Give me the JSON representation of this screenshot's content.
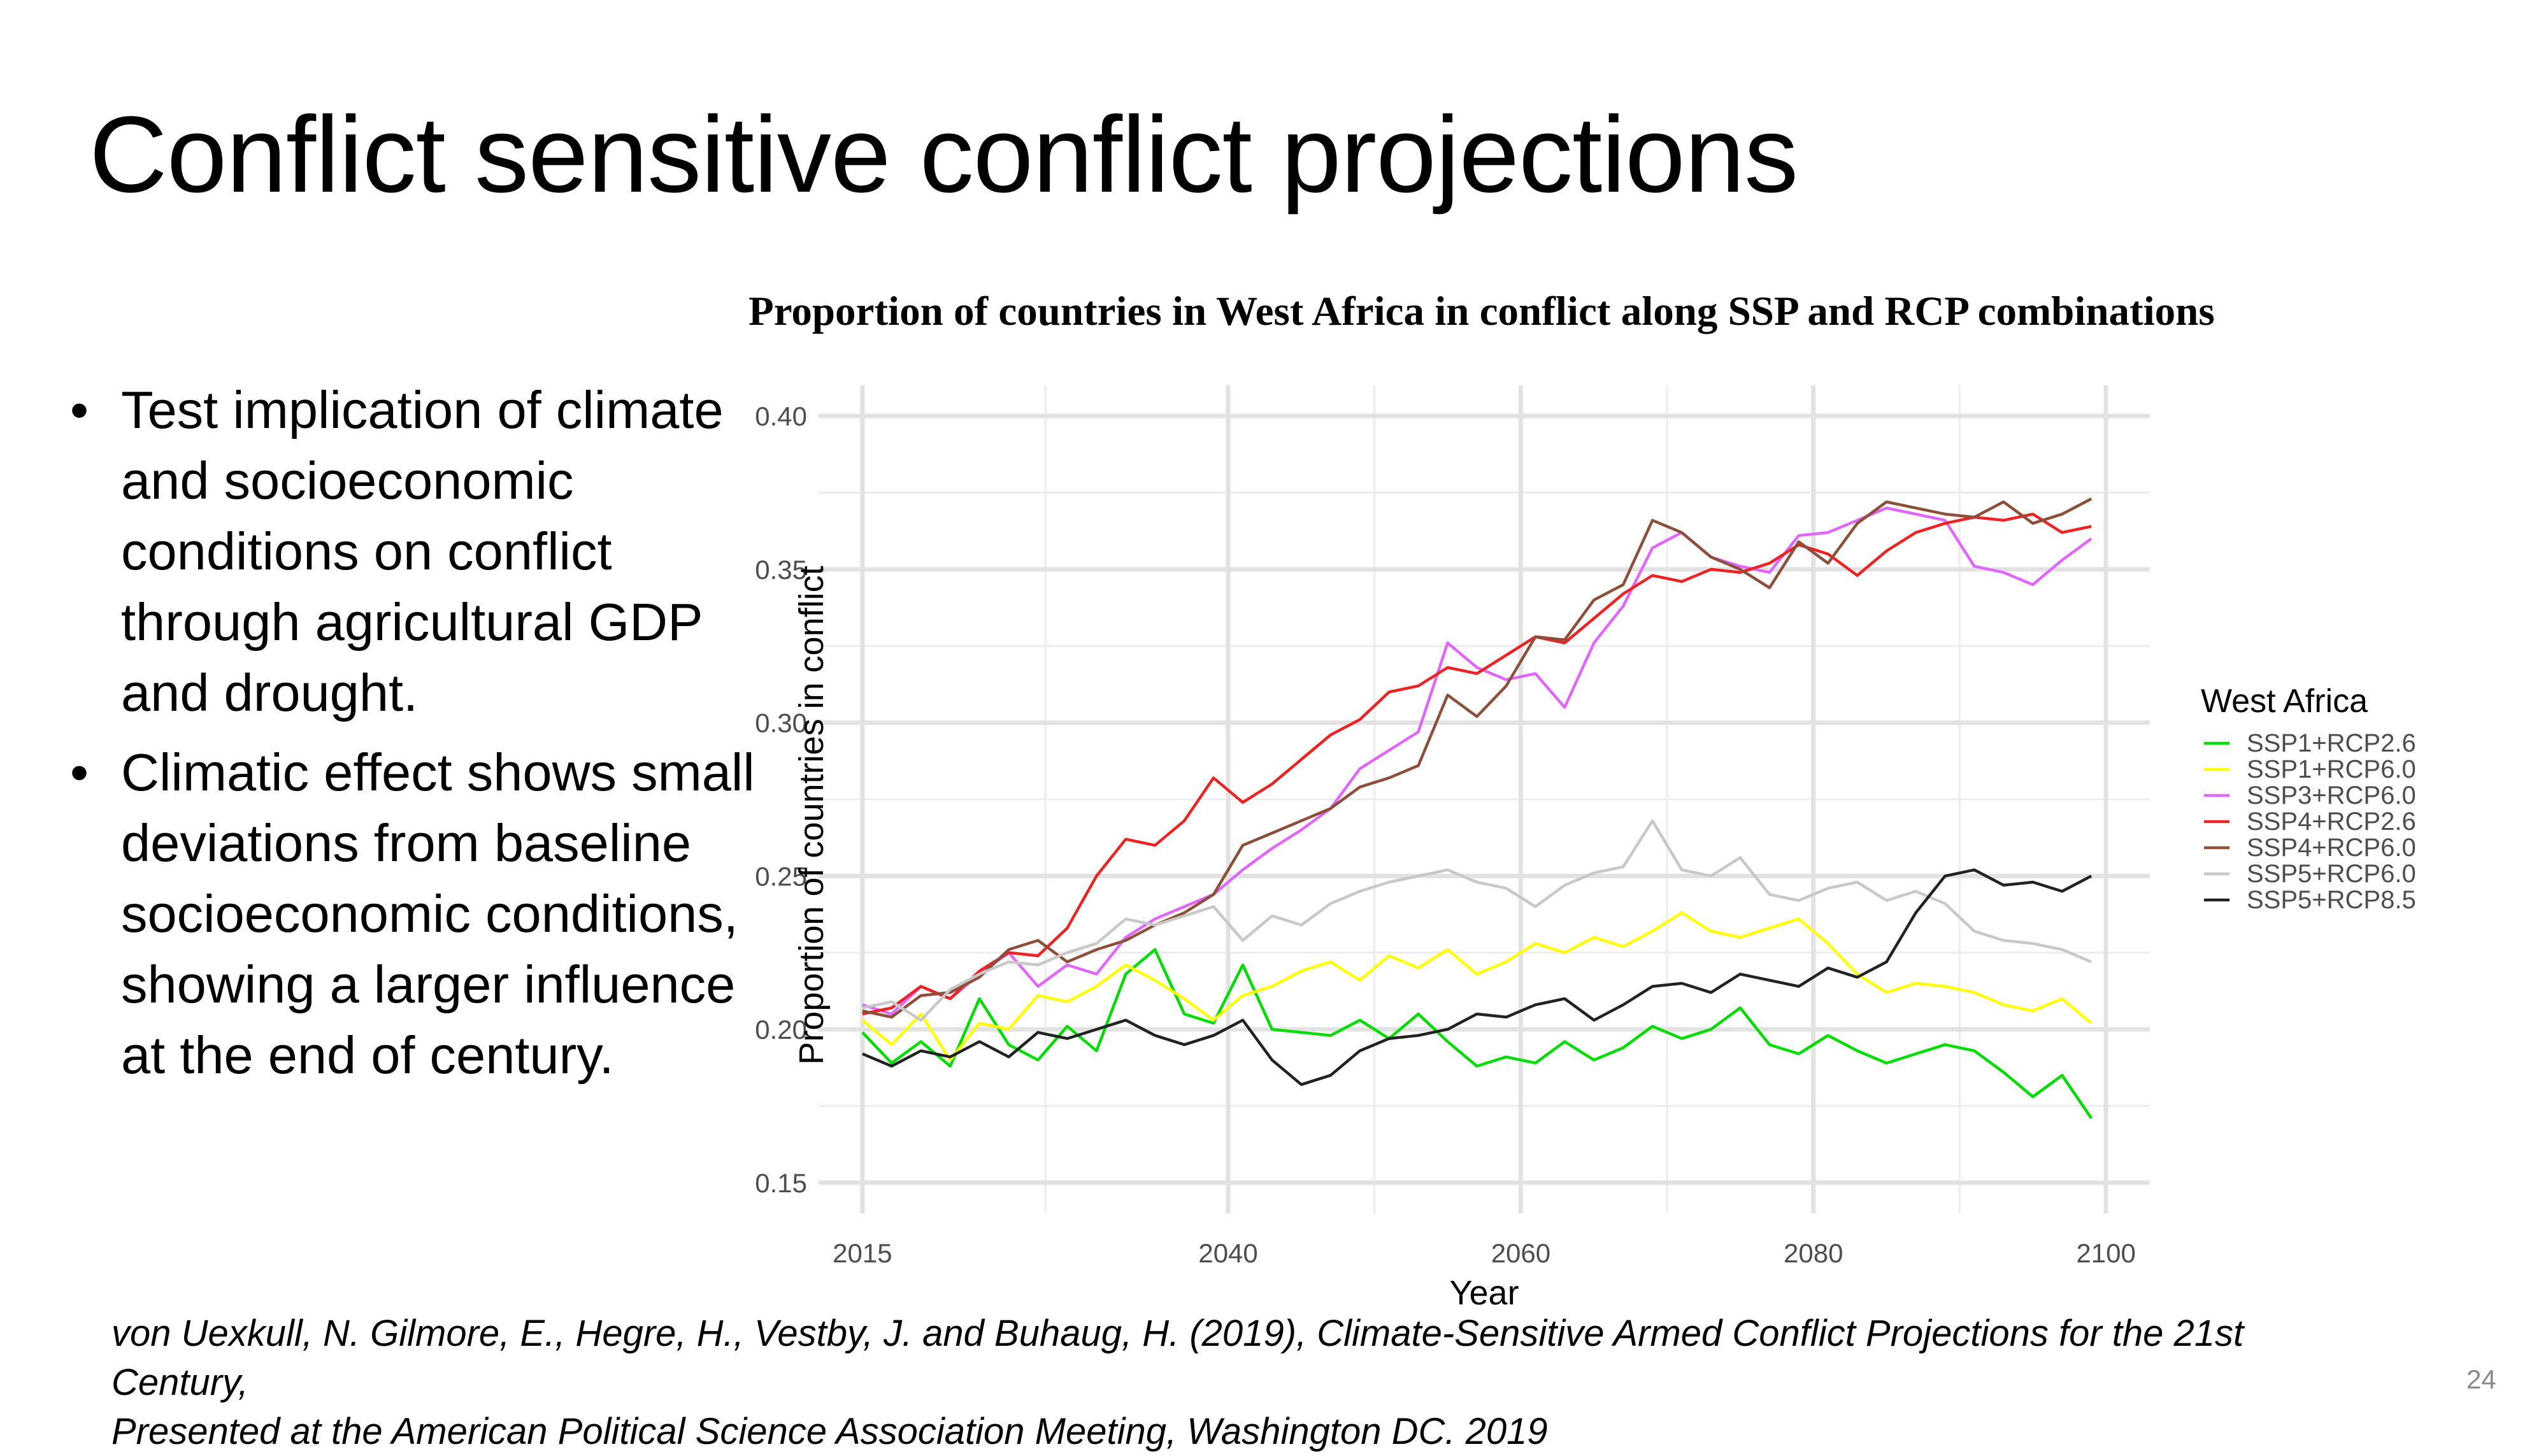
{
  "slide": {
    "title": "Conflict sensitive conflict projections",
    "bullets": [
      "Test implication of climate and socioeconomic conditions on conflict through agricultural GDP and drought.",
      "Climatic effect shows small deviations from baseline socioeconomic conditions, showing a larger influence at the end of century."
    ],
    "citation_line1": "von Uexkull, N. Gilmore, E., Hegre, H., Vestby, J. and Buhaug, H. (2019), Climate-Sensitive Armed Conflict Projections for the 21st Century,",
    "citation_line2": "Presented at the American Political Science Association Meeting, Washington DC. 2019",
    "page_number": "24"
  },
  "chart_data": {
    "type": "line",
    "title": "Proportion of countries in West Africa in conflict along SSP and RCP combinations",
    "xlabel": "Year",
    "ylabel": "Proportion of countries in conflict",
    "xlim": [
      2012,
      2103
    ],
    "ylim": [
      0.14,
      0.41
    ],
    "x_ticks": [
      2015,
      2040,
      2060,
      2080,
      2100
    ],
    "y_ticks": [
      0.15,
      0.2,
      0.25,
      0.3,
      0.35,
      0.4
    ],
    "grid": true,
    "legend_title": "West Africa",
    "legend_position": "right",
    "x": [
      2015,
      2017,
      2019,
      2021,
      2023,
      2025,
      2027,
      2029,
      2031,
      2033,
      2035,
      2037,
      2039,
      2041,
      2043,
      2045,
      2047,
      2049,
      2051,
      2053,
      2055,
      2057,
      2059,
      2061,
      2063,
      2065,
      2067,
      2069,
      2071,
      2073,
      2075,
      2077,
      2079,
      2081,
      2083,
      2085,
      2087,
      2089,
      2091,
      2093,
      2095,
      2097,
      2099
    ],
    "series": [
      {
        "name": "SSP1+RCP2.6",
        "color": "#00dd00",
        "values": [
          0.199,
          0.189,
          0.196,
          0.188,
          0.21,
          0.195,
          0.19,
          0.201,
          0.193,
          0.218,
          0.226,
          0.205,
          0.202,
          0.221,
          0.2,
          0.199,
          0.198,
          0.203,
          0.197,
          0.205,
          0.196,
          0.188,
          0.191,
          0.189,
          0.196,
          0.19,
          0.194,
          0.201,
          0.197,
          0.2,
          0.207,
          0.195,
          0.192,
          0.198,
          0.193,
          0.189,
          0.192,
          0.195,
          0.193,
          0.186,
          0.178,
          0.185,
          0.171
        ]
      },
      {
        "name": "SSP1+RCP6.0",
        "color": "#ffff00",
        "values": [
          0.203,
          0.195,
          0.205,
          0.19,
          0.202,
          0.2,
          0.211,
          0.209,
          0.214,
          0.221,
          0.216,
          0.21,
          0.203,
          0.211,
          0.214,
          0.219,
          0.222,
          0.216,
          0.224,
          0.22,
          0.226,
          0.218,
          0.222,
          0.228,
          0.225,
          0.23,
          0.227,
          0.232,
          0.238,
          0.232,
          0.23,
          0.233,
          0.236,
          0.228,
          0.218,
          0.212,
          0.215,
          0.214,
          0.212,
          0.208,
          0.206,
          0.21,
          0.202
        ]
      },
      {
        "name": "SSP3+RCP6.0",
        "color": "#e066ff",
        "values": [
          0.208,
          0.205,
          0.214,
          0.21,
          0.218,
          0.225,
          0.214,
          0.221,
          0.218,
          0.23,
          0.236,
          0.24,
          0.244,
          0.252,
          0.259,
          0.265,
          0.272,
          0.285,
          0.291,
          0.297,
          0.326,
          0.318,
          0.314,
          0.316,
          0.305,
          0.326,
          0.338,
          0.357,
          0.362,
          0.354,
          0.351,
          0.349,
          0.361,
          0.362,
          0.366,
          0.37,
          0.368,
          0.366,
          0.351,
          0.349,
          0.345,
          0.353,
          0.36
        ]
      },
      {
        "name": "SSP4+RCP2.6",
        "color": "#ee2222",
        "values": [
          0.205,
          0.207,
          0.214,
          0.21,
          0.219,
          0.225,
          0.224,
          0.233,
          0.25,
          0.262,
          0.26,
          0.268,
          0.282,
          0.274,
          0.28,
          0.288,
          0.296,
          0.301,
          0.31,
          0.312,
          0.318,
          0.316,
          0.322,
          0.328,
          0.326,
          0.334,
          0.342,
          0.348,
          0.346,
          0.35,
          0.349,
          0.352,
          0.358,
          0.355,
          0.348,
          0.356,
          0.362,
          0.365,
          0.367,
          0.366,
          0.368,
          0.362,
          0.364
        ]
      },
      {
        "name": "SSP4+RCP6.0",
        "color": "#8b4f3a",
        "values": [
          0.206,
          0.204,
          0.211,
          0.212,
          0.217,
          0.226,
          0.229,
          0.222,
          0.226,
          0.229,
          0.234,
          0.238,
          0.244,
          0.26,
          0.264,
          0.268,
          0.272,
          0.279,
          0.282,
          0.286,
          0.309,
          0.302,
          0.312,
          0.328,
          0.327,
          0.34,
          0.345,
          0.366,
          0.362,
          0.354,
          0.35,
          0.344,
          0.359,
          0.352,
          0.365,
          0.372,
          0.37,
          0.368,
          0.367,
          0.372,
          0.365,
          0.368,
          0.373
        ]
      },
      {
        "name": "SSP5+RCP6.0",
        "color": "#c8c8c8",
        "values": [
          0.207,
          0.209,
          0.203,
          0.213,
          0.218,
          0.222,
          0.221,
          0.225,
          0.228,
          0.236,
          0.234,
          0.237,
          0.24,
          0.229,
          0.237,
          0.234,
          0.241,
          0.245,
          0.248,
          0.25,
          0.252,
          0.248,
          0.246,
          0.24,
          0.247,
          0.251,
          0.253,
          0.268,
          0.252,
          0.25,
          0.256,
          0.244,
          0.242,
          0.246,
          0.248,
          0.242,
          0.245,
          0.241,
          0.232,
          0.229,
          0.228,
          0.226,
          0.222
        ]
      },
      {
        "name": "SSP5+RCP8.5",
        "color": "#222222",
        "values": [
          0.192,
          0.188,
          0.193,
          0.191,
          0.196,
          0.191,
          0.199,
          0.197,
          0.2,
          0.203,
          0.198,
          0.195,
          0.198,
          0.203,
          0.19,
          0.182,
          0.185,
          0.193,
          0.197,
          0.198,
          0.2,
          0.205,
          0.204,
          0.208,
          0.21,
          0.203,
          0.208,
          0.214,
          0.215,
          0.212,
          0.218,
          0.216,
          0.214,
          0.22,
          0.217,
          0.222,
          0.238,
          0.25,
          0.252,
          0.247,
          0.248,
          0.245,
          0.25
        ]
      }
    ]
  }
}
